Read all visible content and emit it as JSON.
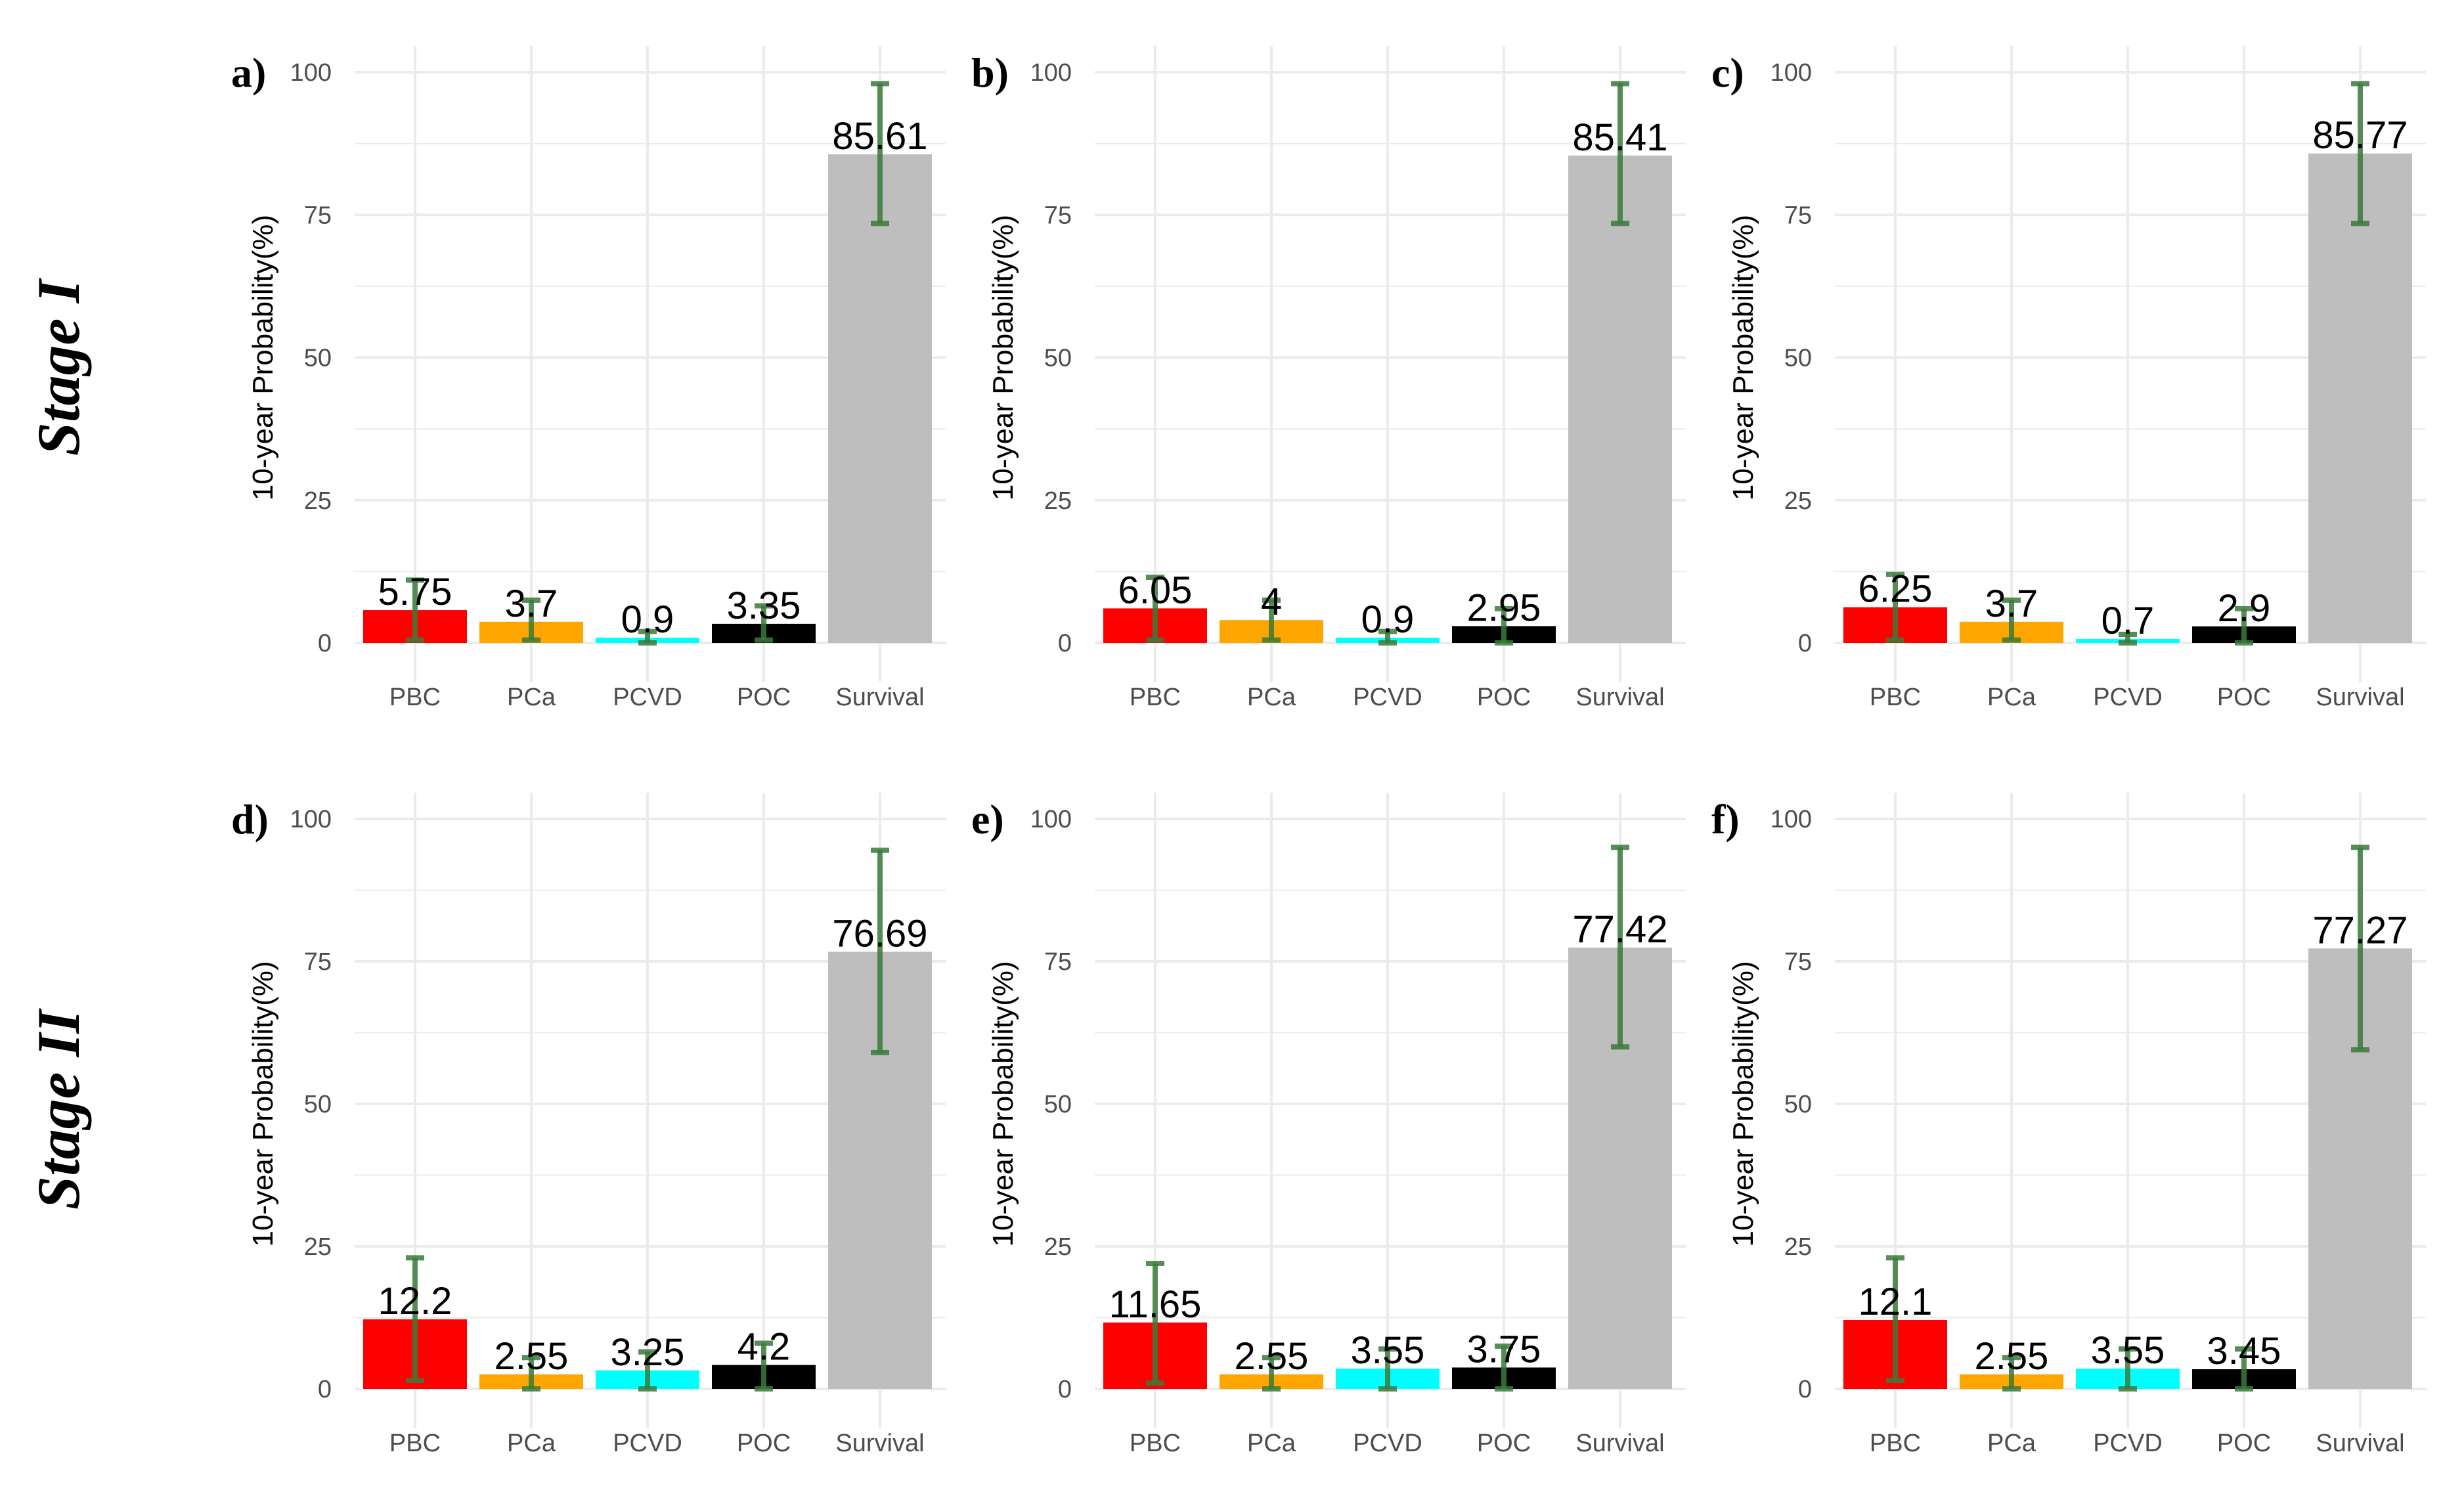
{
  "chart_data": [
    {
      "panel": "a)",
      "type": "bar",
      "ylabel": "10-year Probability(%)",
      "ylim": [
        0,
        100
      ],
      "yticks": [
        "0",
        "25",
        "50",
        "75",
        "100"
      ],
      "categories": [
        "PBC",
        "PCa",
        "PCVD",
        "POC",
        "Survival"
      ],
      "values": [
        5.75,
        3.7,
        0.9,
        3.35,
        85.61
      ],
      "value_labels": [
        "5.75",
        "3.7",
        "0.9",
        "3.35",
        "85.61"
      ],
      "error_low": [
        0.5,
        0.5,
        0,
        0.5,
        73.5
      ],
      "error_high": [
        11,
        7.5,
        2,
        6.5,
        98
      ]
    },
    {
      "panel": "b)",
      "type": "bar",
      "ylabel": "10-year Probability(%)",
      "ylim": [
        0,
        100
      ],
      "yticks": [
        "0",
        "25",
        "50",
        "75",
        "100"
      ],
      "categories": [
        "PBC",
        "PCa",
        "PCVD",
        "POC",
        "Survival"
      ],
      "values": [
        6.05,
        4,
        0.9,
        2.95,
        85.41
      ],
      "value_labels": [
        "6.05",
        "4",
        "0.9",
        "2.95",
        "85.41"
      ],
      "error_low": [
        0.5,
        0.5,
        0,
        0,
        73.5
      ],
      "error_high": [
        11.5,
        7.5,
        2,
        6,
        98
      ]
    },
    {
      "panel": "c)",
      "type": "bar",
      "ylabel": "10-year Probability(%)",
      "ylim": [
        0,
        100
      ],
      "yticks": [
        "0",
        "25",
        "50",
        "75",
        "100"
      ],
      "categories": [
        "PBC",
        "PCa",
        "PCVD",
        "POC",
        "Survival"
      ],
      "values": [
        6.25,
        3.7,
        0.7,
        2.9,
        85.77
      ],
      "value_labels": [
        "6.25",
        "3.7",
        "0.7",
        "2.9",
        "85.77"
      ],
      "error_low": [
        0.5,
        0.5,
        0,
        0,
        73.5
      ],
      "error_high": [
        12,
        7.5,
        1.5,
        6,
        98
      ]
    },
    {
      "panel": "d)",
      "type": "bar",
      "ylabel": "10-year Probability(%)",
      "ylim": [
        0,
        100
      ],
      "yticks": [
        "0",
        "25",
        "50",
        "75",
        "100"
      ],
      "categories": [
        "PBC",
        "PCa",
        "PCVD",
        "POC",
        "Survival"
      ],
      "values": [
        12.2,
        2.55,
        3.25,
        4.2,
        76.69
      ],
      "value_labels": [
        "12.2",
        "2.55",
        "3.25",
        "4.2",
        "76.69"
      ],
      "error_low": [
        1.5,
        0,
        0,
        0,
        59
      ],
      "error_high": [
        23,
        5.5,
        6.5,
        8,
        94.5
      ]
    },
    {
      "panel": "e)",
      "type": "bar",
      "ylabel": "10-year Probability(%)",
      "ylim": [
        0,
        100
      ],
      "yticks": [
        "0",
        "25",
        "50",
        "75",
        "100"
      ],
      "categories": [
        "PBC",
        "PCa",
        "PCVD",
        "POC",
        "Survival"
      ],
      "values": [
        11.65,
        2.55,
        3.55,
        3.75,
        77.42
      ],
      "value_labels": [
        "11.65",
        "2.55",
        "3.55",
        "3.75",
        "77.42"
      ],
      "error_low": [
        1,
        0,
        0,
        0,
        60
      ],
      "error_high": [
        22,
        5.5,
        7,
        7.5,
        95
      ]
    },
    {
      "panel": "f)",
      "type": "bar",
      "ylabel": "10-year Probability(%)",
      "ylim": [
        0,
        100
      ],
      "yticks": [
        "0",
        "25",
        "50",
        "75",
        "100"
      ],
      "categories": [
        "PBC",
        "PCa",
        "PCVD",
        "POC",
        "Survival"
      ],
      "values": [
        12.1,
        2.55,
        3.55,
        3.45,
        77.27
      ],
      "value_labels": [
        "12.1",
        "2.55",
        "3.55",
        "3.45",
        "77.27"
      ],
      "error_low": [
        1.5,
        0,
        0,
        0,
        59.5
      ],
      "error_high": [
        23,
        5.5,
        7,
        7,
        95
      ]
    }
  ],
  "row_labels": [
    "Stage I",
    "Stage II"
  ],
  "colors": {
    "bars": [
      "#ff0000",
      "#ffa500",
      "#00ffff",
      "#000000",
      "#bebebe"
    ],
    "error": "#3a7a3a",
    "grid": "#ebebeb"
  }
}
